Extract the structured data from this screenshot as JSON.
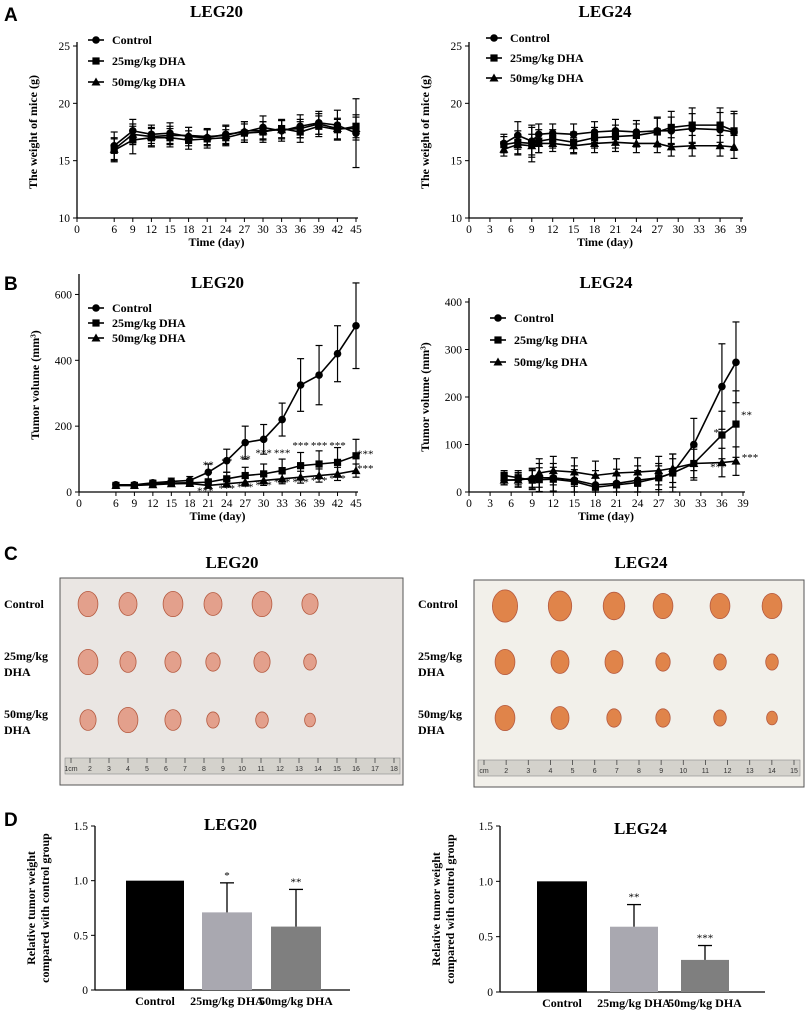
{
  "panels": {
    "A": "A",
    "B": "B",
    "C": "C",
    "D": "D"
  },
  "legend": [
    "Control",
    "25mg/kg DHA",
    "50mg/kg DHA"
  ],
  "chart_data": [
    {
      "id": "A-LEG20",
      "type": "line",
      "title": "LEG20",
      "xlabel": "Time (day)",
      "ylabel": "The weight of mice (g)",
      "xlim": [
        0,
        45
      ],
      "ylim": [
        10,
        25
      ],
      "xticks": [
        0,
        6,
        9,
        12,
        15,
        18,
        21,
        24,
        27,
        30,
        33,
        36,
        39,
        42,
        45
      ],
      "yticks": [
        10,
        15,
        20,
        25
      ],
      "x": [
        6,
        9,
        12,
        15,
        18,
        21,
        24,
        27,
        30,
        33,
        36,
        39,
        42,
        45
      ],
      "series": [
        {
          "name": "Control",
          "marker": "circle",
          "values": [
            16.3,
            17.6,
            17.3,
            17.4,
            17.1,
            17.0,
            17.3,
            17.5,
            17.9,
            17.6,
            18.0,
            18.3,
            18.1,
            17.4
          ],
          "err": [
            1.2,
            1.0,
            0.8,
            0.9,
            0.8,
            0.7,
            0.8,
            0.9,
            1.0,
            0.9,
            1.0,
            1.0,
            1.3,
            3.0
          ]
        },
        {
          "name": "25mg/kg DHA",
          "marker": "square",
          "values": [
            15.9,
            16.8,
            17.0,
            17.0,
            16.8,
            16.9,
            17.0,
            17.4,
            17.5,
            17.8,
            17.5,
            18.0,
            17.7,
            18.0
          ],
          "err": [
            1.0,
            1.2,
            0.8,
            0.8,
            0.8,
            0.8,
            0.7,
            0.8,
            0.9,
            0.8,
            0.9,
            0.9,
            0.9,
            1.0
          ]
        },
        {
          "name": "50mg/kg DHA",
          "marker": "triangle",
          "values": [
            16.0,
            17.3,
            17.1,
            17.2,
            17.2,
            17.1,
            17.2,
            17.6,
            17.6,
            17.7,
            17.8,
            18.2,
            17.8,
            17.8
          ],
          "err": [
            1.0,
            0.9,
            0.8,
            0.8,
            0.7,
            0.7,
            0.8,
            0.8,
            0.8,
            0.8,
            0.8,
            0.9,
            0.9,
            1.0
          ]
        }
      ]
    },
    {
      "id": "A-LEG24",
      "type": "line",
      "title": "LEG24",
      "xlabel": "Time (day)",
      "ylabel": "The weight of mice (g)",
      "xlim": [
        0,
        39
      ],
      "ylim": [
        10,
        25
      ],
      "xticks": [
        0,
        3,
        6,
        9,
        12,
        15,
        18,
        21,
        24,
        27,
        30,
        33,
        36,
        39
      ],
      "yticks": [
        10,
        15,
        20,
        25
      ],
      "x": [
        5,
        7,
        9,
        10,
        12,
        15,
        18,
        21,
        24,
        27,
        29,
        32,
        36,
        38
      ],
      "series": [
        {
          "name": "Control",
          "marker": "circle",
          "values": [
            16.5,
            17.2,
            16.7,
            17.3,
            17.4,
            17.3,
            17.5,
            17.6,
            17.5,
            17.6,
            17.6,
            17.8,
            17.7,
            17.5
          ],
          "err": [
            0.8,
            1.2,
            1.2,
            0.9,
            0.8,
            0.9,
            0.9,
            1.0,
            1.0,
            1.1,
            1.2,
            1.3,
            1.5,
            1.6
          ]
        },
        {
          "name": "25mg/kg DHA",
          "marker": "square",
          "values": [
            16.4,
            16.6,
            16.5,
            16.7,
            16.9,
            16.6,
            17.0,
            17.1,
            17.2,
            17.5,
            17.9,
            18.1,
            18.1,
            17.6
          ],
          "err": [
            0.7,
            1.0,
            1.6,
            1.0,
            0.8,
            0.9,
            0.9,
            1.0,
            1.0,
            1.3,
            1.4,
            1.5,
            1.5,
            1.7
          ]
        },
        {
          "name": "50mg/kg DHA",
          "marker": "triangle",
          "values": [
            16.0,
            16.4,
            16.3,
            16.5,
            16.5,
            16.3,
            16.5,
            16.6,
            16.5,
            16.5,
            16.2,
            16.3,
            16.3,
            16.2
          ],
          "err": [
            0.6,
            0.9,
            1.0,
            0.8,
            0.7,
            0.7,
            0.8,
            0.8,
            0.8,
            0.8,
            0.8,
            0.9,
            0.9,
            1.0
          ]
        }
      ]
    },
    {
      "id": "B-LEG20",
      "type": "line",
      "title": "LEG20",
      "xlabel": "Time (day)",
      "ylabel": "Tumor volume (mm³)",
      "xlim": [
        0,
        45
      ],
      "ylim": [
        0,
        650
      ],
      "xticks": [
        0,
        6,
        9,
        12,
        15,
        18,
        21,
        24,
        27,
        30,
        33,
        36,
        39,
        42,
        45
      ],
      "yticks": [
        0,
        200,
        400,
        600
      ],
      "x": [
        6,
        9,
        12,
        15,
        18,
        21,
        24,
        27,
        30,
        33,
        36,
        39,
        42,
        45
      ],
      "series": [
        {
          "name": "Control",
          "marker": "circle",
          "values": [
            22,
            22,
            28,
            32,
            35,
            60,
            95,
            150,
            160,
            220,
            325,
            355,
            420,
            505
          ],
          "err": [
            5,
            5,
            8,
            10,
            12,
            25,
            35,
            50,
            45,
            50,
            80,
            90,
            85,
            130
          ]
        },
        {
          "name": "25mg/kg DHA",
          "marker": "square",
          "values": [
            20,
            20,
            25,
            27,
            28,
            30,
            40,
            50,
            55,
            65,
            80,
            85,
            90,
            110
          ],
          "err": [
            5,
            5,
            6,
            7,
            8,
            10,
            20,
            25,
            30,
            35,
            40,
            40,
            45,
            50
          ]
        },
        {
          "name": "50mg/kg DHA",
          "marker": "triangle",
          "values": [
            20,
            20,
            22,
            25,
            26,
            20,
            25,
            30,
            35,
            40,
            45,
            50,
            55,
            65
          ],
          "err": [
            5,
            5,
            6,
            7,
            8,
            8,
            10,
            12,
            15,
            15,
            18,
            20,
            20,
            20
          ]
        }
      ],
      "annotations": [
        {
          "x": 21,
          "y": 72,
          "text": "**"
        },
        {
          "x": 24,
          "y": 82,
          "text": "**"
        },
        {
          "x": 27,
          "y": 90,
          "text": "**"
        },
        {
          "x": 30,
          "y": 108,
          "text": "***"
        },
        {
          "x": 33,
          "y": 108,
          "text": "***"
        },
        {
          "x": 36,
          "y": 130,
          "text": "***"
        },
        {
          "x": 39,
          "y": 130,
          "text": "***"
        },
        {
          "x": 42,
          "y": 130,
          "text": "***"
        },
        {
          "x": 46.5,
          "y": 105,
          "text": "***"
        },
        {
          "x": 20.5,
          "y": -8,
          "text": "***"
        },
        {
          "x": 24,
          "y": 0,
          "text": "***"
        },
        {
          "x": 27,
          "y": 5,
          "text": "***"
        },
        {
          "x": 30,
          "y": 10,
          "text": "***"
        },
        {
          "x": 33,
          "y": 20,
          "text": "***"
        },
        {
          "x": 36,
          "y": 20,
          "text": "***"
        },
        {
          "x": 39,
          "y": 25,
          "text": "***"
        },
        {
          "x": 42,
          "y": 30,
          "text": "***"
        },
        {
          "x": 46.5,
          "y": 60,
          "text": "***"
        }
      ]
    },
    {
      "id": "B-LEG24",
      "type": "line",
      "title": "LEG24",
      "xlabel": "Time (day)",
      "ylabel": "Tumor volume (mm³)",
      "xlim": [
        0,
        39
      ],
      "ylim": [
        0,
        400
      ],
      "xticks": [
        0,
        3,
        6,
        9,
        12,
        15,
        18,
        21,
        24,
        27,
        30,
        33,
        36,
        39
      ],
      "yticks": [
        0,
        100,
        200,
        300,
        400
      ],
      "x": [
        5,
        7,
        9,
        10,
        12,
        15,
        18,
        21,
        24,
        27,
        29,
        32,
        36,
        38
      ],
      "series": [
        {
          "name": "Control",
          "marker": "circle",
          "values": [
            25,
            26,
            28,
            30,
            30,
            25,
            15,
            18,
            25,
            30,
            40,
            100,
            222,
            273
          ],
          "err": [
            10,
            15,
            20,
            30,
            30,
            30,
            30,
            30,
            30,
            30,
            40,
            55,
            90,
            85
          ]
        },
        {
          "name": "25mg/kg DHA",
          "marker": "square",
          "values": [
            35,
            30,
            25,
            26,
            27,
            22,
            10,
            15,
            20,
            30,
            40,
            60,
            120,
            143
          ],
          "err": [
            10,
            15,
            20,
            25,
            25,
            25,
            25,
            25,
            25,
            25,
            30,
            35,
            50,
            70
          ]
        },
        {
          "name": "50mg/kg DHA",
          "marker": "triangle",
          "values": [
            25,
            25,
            30,
            40,
            45,
            42,
            35,
            40,
            42,
            45,
            50,
            60,
            62,
            65
          ],
          "err": [
            10,
            15,
            20,
            30,
            30,
            30,
            30,
            30,
            30,
            30,
            30,
            30,
            30,
            30
          ]
        }
      ],
      "annotations": [
        {
          "x": 35.2,
          "y": 118,
          "text": "*"
        },
        {
          "x": 39.5,
          "y": 155,
          "text": "**"
        },
        {
          "x": 35.5,
          "y": 45,
          "text": "***"
        },
        {
          "x": 40,
          "y": 65,
          "text": "***"
        }
      ]
    },
    {
      "id": "D-LEG20",
      "type": "bar",
      "title": "LEG20",
      "ylabel_lines": [
        "Relative tumor weight",
        "compared with control group"
      ],
      "categories": [
        "Control",
        "25mg/kg DHA",
        "50mg/kg DHA"
      ],
      "values": [
        1.0,
        0.71,
        0.58
      ],
      "err": [
        0,
        0.27,
        0.34
      ],
      "significance": [
        "",
        "*",
        "**"
      ],
      "colors": [
        "#000000",
        "#a9a8b0",
        "#7f7f7f"
      ],
      "ylim": [
        0,
        1.5
      ],
      "yticks": [
        "0",
        "0.5",
        "1.0",
        "1.5"
      ]
    },
    {
      "id": "D-LEG24",
      "type": "bar",
      "title": "LEG24",
      "ylabel_lines": [
        "Relative tumor weight",
        "compared with control group"
      ],
      "categories": [
        "Control",
        "25mg/kg DHA",
        "50mg/kg DHA"
      ],
      "values": [
        1.0,
        0.59,
        0.29
      ],
      "err": [
        0,
        0.2,
        0.13
      ],
      "significance": [
        "",
        "**",
        "***"
      ],
      "colors": [
        "#000000",
        "#a9a8b0",
        "#7f7f7f"
      ],
      "ylim": [
        0,
        1.5
      ],
      "yticks": [
        "0",
        "0.5",
        "1.0",
        "1.5"
      ]
    }
  ],
  "photos": [
    {
      "id": "C-LEG20",
      "title": "LEG20",
      "rows": [
        "Control",
        "25mg/kg\nDHA",
        "50mg/kg\nDHA"
      ],
      "ruler": [
        "1cm",
        "2",
        "3",
        "4",
        "5",
        "6",
        "7",
        "8",
        "9",
        "10",
        "11",
        "12",
        "13",
        "14",
        "15",
        "16",
        "17",
        "18"
      ]
    },
    {
      "id": "C-LEG24",
      "title": "LEG24",
      "rows": [
        "Control",
        "25mg/kg\nDHA",
        "50mg/kg\nDHA"
      ],
      "ruler": [
        "cm",
        "2",
        "3",
        "4",
        "5",
        "6",
        "7",
        "8",
        "9",
        "10",
        "11",
        "12",
        "13",
        "14",
        "15"
      ]
    }
  ],
  "colors": {
    "line": "#000000",
    "bg": "#ffffff",
    "tumor": "#d9887a",
    "tumor_dark": "#c0392b",
    "tumor24": "#e07a3f"
  }
}
